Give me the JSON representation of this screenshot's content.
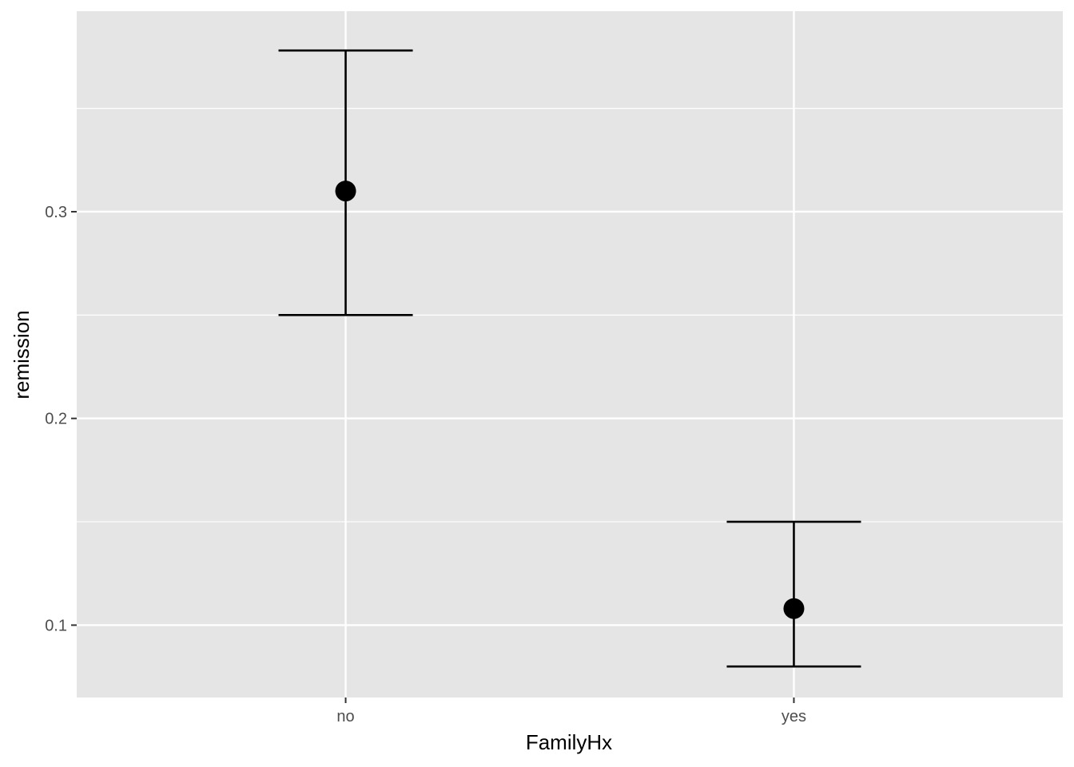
{
  "chart_data": {
    "type": "scatter",
    "subtype": "point-with-errorbars",
    "title": "",
    "xlabel": "FamilyHx",
    "ylabel": "remission",
    "categories": [
      "no",
      "yes"
    ],
    "values": [
      0.31,
      0.108
    ],
    "ci_lower": [
      0.25,
      0.08
    ],
    "ci_upper": [
      0.378,
      0.15
    ],
    "ylim": [
      0.065,
      0.397
    ],
    "y_ticks": [
      0.1,
      0.2,
      0.3
    ],
    "y_tick_labels": [
      "0.1",
      "0.2",
      "0.3"
    ],
    "grid": true,
    "legend": "none",
    "colors": {
      "panel": "#e5e5e5",
      "grid": "#ffffff",
      "mark": "#000000",
      "tick_text": "#4d4d4d"
    }
  }
}
